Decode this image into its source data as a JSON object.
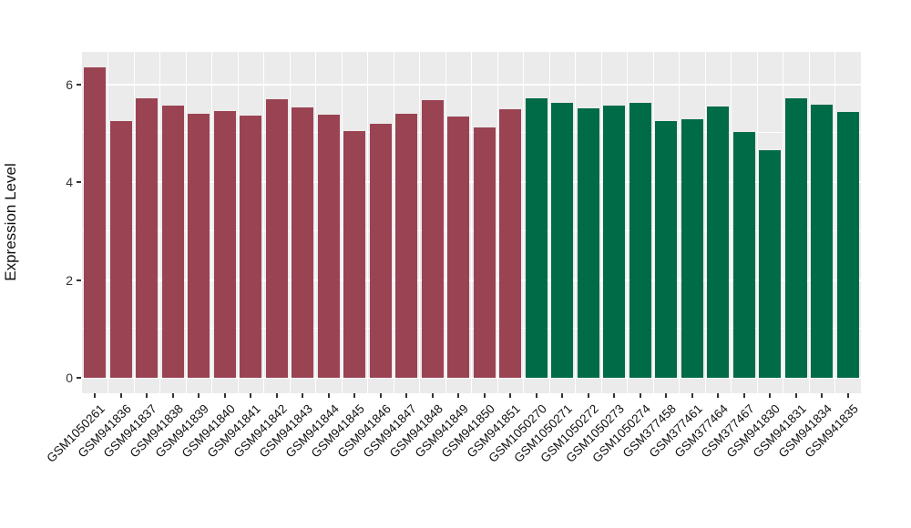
{
  "chart_data": {
    "type": "bar",
    "title": "",
    "xlabel": "",
    "ylabel": "Expression Level",
    "categories": [
      "GSM1050261",
      "GSM941836",
      "GSM941837",
      "GSM941838",
      "GSM941839",
      "GSM941840",
      "GSM941841",
      "GSM941842",
      "GSM941843",
      "GSM941844",
      "GSM941845",
      "GSM941846",
      "GSM941847",
      "GSM941848",
      "GSM941849",
      "GSM941850",
      "GSM941851",
      "GSM1050270",
      "GSM1050271",
      "GSM1050272",
      "GSM1050273",
      "GSM1050274",
      "GSM377458",
      "GSM377461",
      "GSM377464",
      "GSM377467",
      "GSM941830",
      "GSM941831",
      "GSM941834",
      "GSM941835"
    ],
    "values": [
      6.34,
      5.25,
      5.71,
      5.57,
      5.4,
      5.46,
      5.35,
      5.7,
      5.52,
      5.37,
      5.04,
      5.19,
      5.39,
      5.67,
      5.34,
      5.12,
      5.48,
      5.72,
      5.61,
      5.5,
      5.56,
      5.61,
      5.25,
      5.29,
      5.55,
      5.02,
      4.66,
      5.72,
      5.58,
      5.44
    ],
    "group_split_index": 17,
    "group1_color": "#9A4352",
    "group2_color": "#006B47",
    "panel_background": "#EBEBEB",
    "gridline_color": "#ffffff",
    "y_major_ticks": [
      0,
      2,
      4,
      6
    ],
    "y_minor_ticks": [
      1,
      3,
      5
    ],
    "ylim": [
      0,
      6.66
    ],
    "grid": "on",
    "legend": "none",
    "x_tick_rotation_deg": 45
  }
}
